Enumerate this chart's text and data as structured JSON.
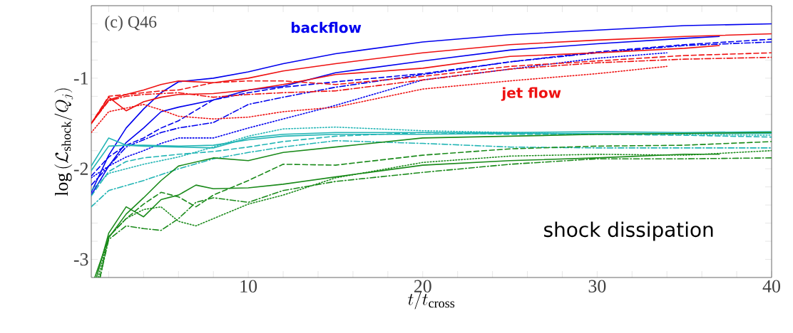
{
  "chart_data": {
    "type": "line",
    "xlabel": "t/t_{\\rm cross}",
    "ylabel": "\\log\\left(\\mathcal{L}_{\\rm shock}/Q_j\\right)",
    "annotations": [
      "(c) Q46",
      "backflow",
      "jet flow",
      "shock dissipation"
    ],
    "xlim": [
      1,
      40
    ],
    "ylim": [
      -3.2,
      -0.2
    ],
    "xticks": [
      {
        "value": 2,
        "label": null
      },
      {
        "value": 4,
        "label": null
      },
      {
        "value": 6,
        "label": null
      },
      {
        "value": 8,
        "label": null
      },
      10,
      {
        "value": 12,
        "label": null
      },
      {
        "value": 14,
        "label": null
      },
      {
        "value": 16,
        "label": null
      },
      {
        "value": 18,
        "label": null
      },
      20,
      {
        "value": 22,
        "label": null
      },
      {
        "value": 24,
        "label": null
      },
      {
        "value": 26,
        "label": null
      },
      {
        "value": 28,
        "label": null
      },
      30,
      {
        "value": 32,
        "label": null
      },
      {
        "value": 34,
        "label": null
      },
      {
        "value": 36,
        "label": null
      },
      {
        "value": 38,
        "label": null
      },
      40
    ],
    "yticks": [
      -3,
      {
        "value": -2.8,
        "label": null
      },
      {
        "value": -2.6,
        "label": null
      },
      {
        "value": -2.4,
        "label": null
      },
      {
        "value": -2.2,
        "label": null
      },
      -2,
      {
        "value": -1.8,
        "label": null
      },
      {
        "value": -1.6,
        "label": null
      },
      {
        "value": -1.4,
        "label": null
      },
      {
        "value": -1.2,
        "label": null
      },
      -1,
      {
        "value": -0.8,
        "label": null
      },
      {
        "value": -0.6,
        "label": null
      },
      {
        "value": -0.4,
        "label": null
      }
    ],
    "series": [
      {
        "color": "#0000ee",
        "line_style": "solid",
        "x": [
          1,
          2,
          3,
          4,
          5,
          6,
          8,
          10,
          12,
          15,
          20,
          25,
          30,
          35,
          40
        ],
        "values": [
          -2.26,
          -1.85,
          -1.55,
          -1.34,
          -1.16,
          -1.04,
          -1.0,
          -0.93,
          -0.84,
          -0.73,
          -0.6,
          -0.52,
          -0.47,
          -0.42,
          -0.4
        ]
      },
      {
        "color": "#0000ee",
        "line_style": "solid",
        "x": [
          1,
          2,
          3,
          4,
          5,
          6,
          8,
          10,
          12,
          15,
          20,
          25,
          30,
          35,
          37
        ],
        "values": [
          -2.29,
          -1.97,
          -1.71,
          -1.55,
          -1.37,
          -1.32,
          -1.24,
          -1.13,
          -1.09,
          -0.94,
          -0.81,
          -0.69,
          -0.62,
          -0.56,
          -0.54
        ]
      },
      {
        "color": "#0000ee",
        "line_style": "dashed",
        "x": [
          1,
          2,
          3,
          4,
          5,
          6,
          8,
          10,
          12,
          15,
          20,
          25,
          30,
          35,
          40
        ],
        "values": [
          -2.08,
          -1.87,
          -1.74,
          -1.66,
          -1.55,
          -1.47,
          -1.24,
          -1.16,
          -1.1,
          -1.04,
          -0.95,
          -0.82,
          -0.71,
          -0.63,
          -0.57
        ]
      },
      {
        "color": "#0000ee",
        "line_style": "dashdot",
        "x": [
          1,
          2,
          3,
          4,
          5,
          6,
          8,
          10,
          12,
          15,
          20,
          25,
          30,
          35,
          40
        ],
        "values": [
          -2.18,
          -1.97,
          -1.76,
          -1.68,
          -1.6,
          -1.55,
          -1.49,
          -1.29,
          -1.21,
          -1.1,
          -0.96,
          -0.82,
          -0.72,
          -0.64,
          -0.6
        ]
      },
      {
        "color": "#0000ee",
        "line_style": "dotted",
        "x": [
          1,
          2,
          3,
          4,
          5,
          6,
          8,
          10,
          12,
          15,
          20,
          25,
          30,
          34
        ],
        "values": [
          -2.1,
          -1.97,
          -1.87,
          -1.8,
          -1.72,
          -1.66,
          -1.66,
          -1.55,
          -1.45,
          -1.3,
          -1.02,
          -0.9,
          -0.78,
          -0.72
        ]
      },
      {
        "color": "#ee1111",
        "line_style": "solid",
        "x": [
          1,
          2,
          3,
          4,
          5,
          6,
          8,
          10,
          12,
          15,
          20,
          25,
          30,
          35,
          40
        ],
        "values": [
          -1.5,
          -1.24,
          -1.18,
          -1.13,
          -1.07,
          -1.03,
          -1.05,
          -1.0,
          -0.92,
          -0.84,
          -0.72,
          -0.63,
          -0.58,
          -0.54,
          -0.51
        ]
      },
      {
        "color": "#ee1111",
        "line_style": "solid",
        "x": [
          1,
          2,
          3,
          4,
          5,
          6,
          8,
          10,
          12,
          15,
          20,
          25,
          30,
          35,
          37
        ],
        "values": [
          -1.5,
          -1.21,
          -1.36,
          -1.26,
          -1.21,
          -1.18,
          -1.17,
          -1.13,
          -1.07,
          -0.96,
          -0.89,
          -0.76,
          -0.72,
          -0.67,
          -0.64
        ]
      },
      {
        "color": "#ee1111",
        "line_style": "dashed",
        "x": [
          1,
          2,
          3,
          4,
          5,
          6,
          8,
          10,
          12,
          15,
          20,
          25,
          30,
          35,
          40
        ],
        "values": [
          -1.5,
          -1.2,
          -1.18,
          -1.16,
          -1.14,
          -1.13,
          -1.05,
          -1.03,
          -1.03,
          -1.07,
          -0.98,
          -0.87,
          -0.81,
          -0.75,
          -0.72
        ]
      },
      {
        "color": "#ee1111",
        "line_style": "dashdot",
        "x": [
          1,
          2,
          3,
          4,
          5,
          6,
          8,
          10,
          12,
          15,
          20,
          25,
          30,
          35,
          40
        ],
        "values": [
          -1.5,
          -1.25,
          -1.2,
          -1.18,
          -1.17,
          -1.16,
          -1.21,
          -1.18,
          -1.16,
          -1.14,
          -1.02,
          -0.9,
          -0.83,
          -0.79,
          -0.77
        ]
      },
      {
        "color": "#ee1111",
        "line_style": "dotted",
        "x": [
          1,
          2,
          3,
          4,
          5,
          6,
          8,
          10,
          12,
          15,
          20,
          25,
          30,
          34
        ],
        "values": [
          -1.6,
          -1.37,
          -1.33,
          -1.29,
          -1.35,
          -1.42,
          -1.45,
          -1.43,
          -1.37,
          -1.32,
          -1.12,
          -1.03,
          -0.95,
          -0.87
        ]
      },
      {
        "color": "#22b5b5",
        "line_style": "solid",
        "x": [
          1,
          2,
          3,
          4,
          6,
          8,
          10,
          12,
          15,
          20,
          25,
          30,
          35,
          40
        ],
        "values": [
          -1.97,
          -1.66,
          -1.74,
          -1.75,
          -1.76,
          -1.77,
          -1.66,
          -1.62,
          -1.6,
          -1.6,
          -1.6,
          -1.59,
          -1.6,
          -1.59
        ]
      },
      {
        "color": "#22b5b5",
        "line_style": "solid",
        "x": [
          1,
          2,
          3,
          4,
          6,
          8,
          10,
          12,
          15,
          20,
          25,
          30,
          35,
          40
        ],
        "values": [
          -2.02,
          -1.75,
          -1.74,
          -1.74,
          -1.75,
          -1.74,
          -1.68,
          -1.64,
          -1.62,
          -1.62,
          -1.61,
          -1.61,
          -1.61,
          -1.61
        ]
      },
      {
        "color": "#22b5b5",
        "line_style": "dashed",
        "x": [
          1,
          2,
          3,
          4,
          6,
          8,
          10,
          12,
          15,
          20,
          25,
          30,
          35,
          40
        ],
        "values": [
          -2.3,
          -2.03,
          -1.92,
          -1.88,
          -1.84,
          -1.81,
          -1.76,
          -1.7,
          -1.64,
          -1.6,
          -1.62,
          -1.62,
          -1.63,
          -1.65
        ]
      },
      {
        "color": "#22b5b5",
        "line_style": "dashdot",
        "x": [
          1,
          2,
          4,
          6,
          8,
          10,
          12,
          15,
          20,
          25,
          30,
          35,
          40
        ],
        "values": [
          -2.42,
          -2.24,
          -2.13,
          -2.0,
          -1.89,
          -1.82,
          -1.76,
          -1.69,
          -1.72,
          -1.76,
          -1.77,
          -1.77,
          -1.77
        ]
      },
      {
        "color": "#22b5b5",
        "line_style": "dotted",
        "x": [
          1,
          2,
          4,
          6,
          8,
          10,
          12,
          15,
          20,
          25,
          30,
          35,
          40
        ],
        "values": [
          -2.24,
          -2.05,
          -1.95,
          -1.87,
          -1.76,
          -1.64,
          -1.56,
          -1.54,
          -1.58,
          -1.6,
          -1.62,
          -1.62,
          -1.63
        ]
      },
      {
        "color": "#1a8a1a",
        "line_style": "solid",
        "x": [
          1.2,
          2,
          3,
          4,
          5,
          6,
          8,
          10,
          12,
          15,
          20,
          25,
          30,
          35,
          40
        ],
        "values": [
          -3.2,
          -2.76,
          -2.5,
          -2.32,
          -2.13,
          -1.97,
          -1.88,
          -1.91,
          -1.82,
          -1.76,
          -1.66,
          -1.64,
          -1.62,
          -1.61,
          -1.6
        ]
      },
      {
        "color": "#1a8a1a",
        "line_style": "solid",
        "x": [
          1.3,
          2,
          3,
          4,
          5,
          6,
          7,
          8,
          10,
          12,
          15,
          20,
          25,
          30,
          35,
          37
        ],
        "values": [
          -3.2,
          -2.71,
          -2.42,
          -2.53,
          -2.34,
          -2.29,
          -2.18,
          -2.22,
          -2.21,
          -2.17,
          -2.09,
          -1.96,
          -1.91,
          -1.88,
          -1.84,
          -1.84
        ]
      },
      {
        "color": "#1a8a1a",
        "line_style": "dashed",
        "x": [
          1.5,
          2,
          3,
          4,
          5,
          6,
          7,
          8,
          10,
          12,
          15,
          20,
          25,
          30,
          35,
          40
        ],
        "values": [
          -3.2,
          -2.75,
          -2.55,
          -2.39,
          -2.26,
          -2.31,
          -2.42,
          -2.29,
          -2.13,
          -1.95,
          -1.96,
          -1.85,
          -1.78,
          -1.75,
          -1.74,
          -1.7
        ]
      },
      {
        "color": "#1a8a1a",
        "line_style": "dashdot",
        "x": [
          1.5,
          2,
          3,
          4,
          5,
          6,
          7,
          8,
          10,
          12,
          15,
          20,
          25,
          30,
          35,
          40
        ],
        "values": [
          -3.2,
          -2.78,
          -2.63,
          -2.66,
          -2.68,
          -2.55,
          -2.37,
          -2.32,
          -2.37,
          -2.24,
          -2.14,
          -2.04,
          -1.95,
          -1.89,
          -1.89,
          -1.88
        ]
      },
      {
        "color": "#1a8a1a",
        "line_style": "dotted",
        "x": [
          1.4,
          2,
          3,
          4,
          5,
          6,
          7,
          8,
          10,
          12,
          15,
          20,
          25,
          30,
          35,
          40
        ],
        "values": [
          -3.2,
          -2.75,
          -2.55,
          -2.45,
          -2.42,
          -2.58,
          -2.63,
          -2.55,
          -2.39,
          -2.29,
          -2.1,
          -1.93,
          -1.86,
          -1.84,
          -1.85,
          -1.8
        ]
      }
    ]
  }
}
